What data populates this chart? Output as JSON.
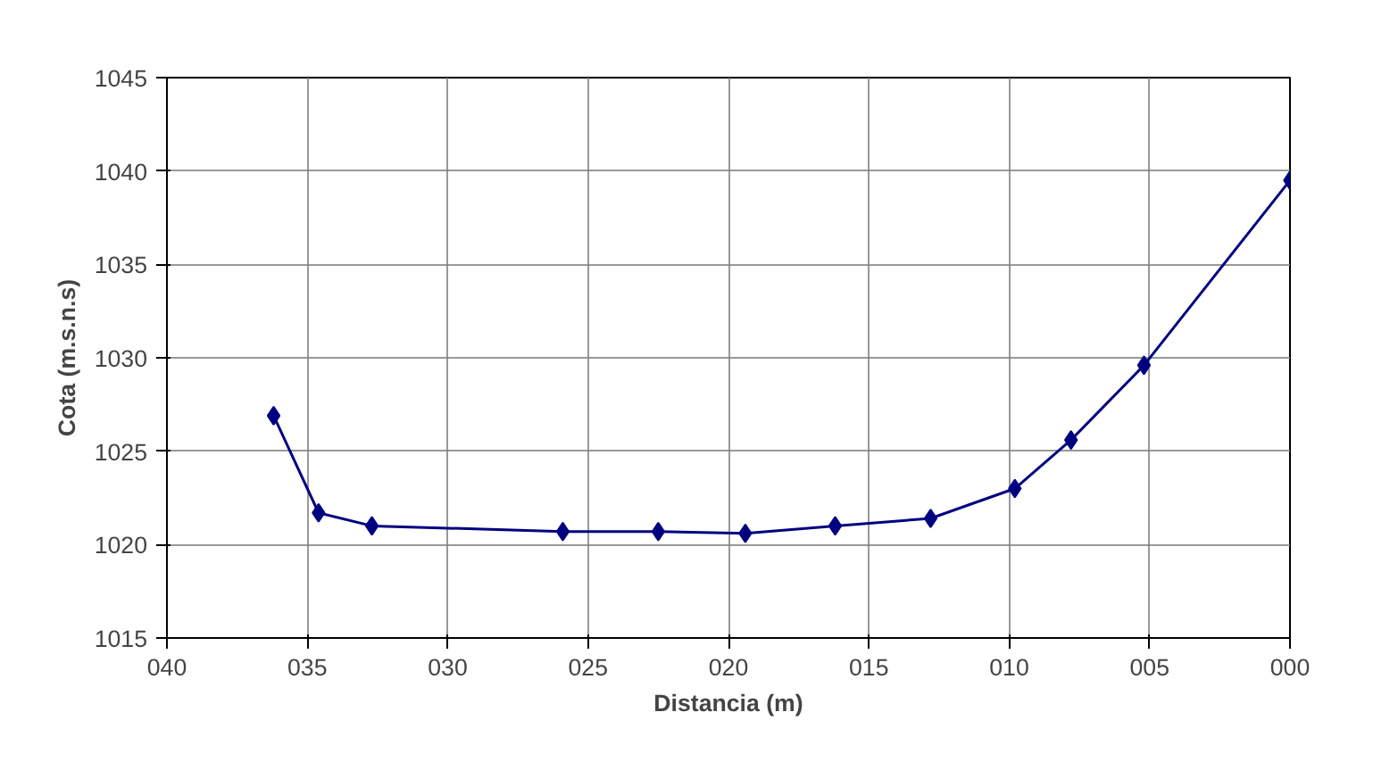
{
  "chart_data": {
    "type": "line",
    "xlabel": "Distancia (m)",
    "ylabel": "Cota (m.s.n.s)",
    "x": [
      36.2,
      34.6,
      32.7,
      25.9,
      22.5,
      19.4,
      16.2,
      12.8,
      9.8,
      7.8,
      5.2,
      0
    ],
    "series": [
      {
        "color": "#000080",
        "values": [
          1026.9,
          1021.7,
          1021.0,
          1020.7,
          1020.7,
          1020.6,
          1021.0,
          1021.4,
          1023.0,
          1025.6,
          1029.6,
          1039.5
        ]
      }
    ],
    "xlim": [
      40,
      0
    ],
    "ylim": [
      1015,
      1045
    ],
    "xticks": [
      {
        "value": 40,
        "label": "040"
      },
      {
        "value": 35,
        "label": "035"
      },
      {
        "value": 30,
        "label": "030"
      },
      {
        "value": 25,
        "label": "025"
      },
      {
        "value": 20,
        "label": "020"
      },
      {
        "value": 15,
        "label": "015"
      },
      {
        "value": 10,
        "label": "010"
      },
      {
        "value": 5,
        "label": "005"
      },
      {
        "value": 0,
        "label": "000"
      }
    ],
    "yticks": [
      1015,
      1020,
      1025,
      1030,
      1035,
      1040,
      1045
    ],
    "grid": true,
    "marker": "diamond",
    "line_style": "solid"
  }
}
